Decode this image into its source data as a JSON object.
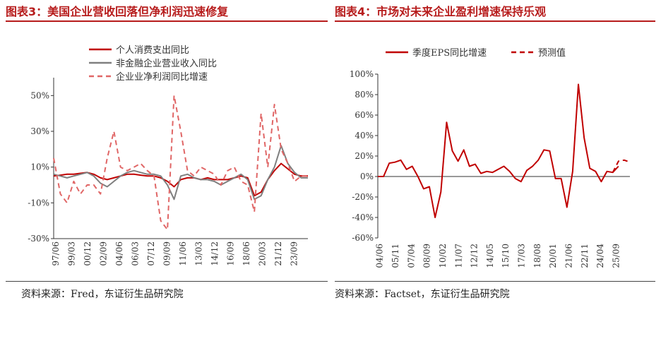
{
  "left": {
    "title": "图表3：美国企业营收回落但净利润迅速修复",
    "source": "资料来源：Fred，东证衍生品研究院"
  },
  "right": {
    "title": "图表4：市场对未来企业盈利增速保持乐观",
    "source": "资料来源：Factset，东证衍生品研究院"
  },
  "chart_data": [
    {
      "type": "line",
      "title": "图表3：美国企业营收回落但净利润迅速修复",
      "ylim": [
        -30,
        60
      ],
      "y_ticks": [
        -30,
        -10,
        10,
        30,
        50
      ],
      "y_tick_labels": [
        "-30%",
        "-10%",
        "10%",
        "30%",
        "50%"
      ],
      "x_tick_labels": [
        "97/06",
        "99/03",
        "00/12",
        "02/09",
        "04/06",
        "06/03",
        "07/12",
        "09/09",
        "11/06",
        "13/03",
        "14/12",
        "16/09",
        "18/06",
        "20/03",
        "21/12",
        "23/09"
      ],
      "legend_position": "top",
      "x": [
        "97/06",
        "98/03",
        "98/12",
        "99/03",
        "99/09",
        "00/06",
        "00/12",
        "01/06",
        "02/03",
        "02/09",
        "03/06",
        "04/06",
        "05/03",
        "06/03",
        "06/12",
        "07/12",
        "08/06",
        "08/12",
        "09/09",
        "10/06",
        "11/06",
        "12/03",
        "13/03",
        "14/06",
        "14/12",
        "15/09",
        "16/09",
        "17/06",
        "18/06",
        "19/06",
        "20/03",
        "20/06",
        "20/12",
        "21/06",
        "21/12",
        "22/06",
        "23/03",
        "23/09",
        "24/03"
      ],
      "series": [
        {
          "name": "个人消费支出同比",
          "color": "#c00000",
          "dash": "solid",
          "values": [
            5,
            5.5,
            6,
            6,
            6.5,
            7,
            6,
            4,
            3,
            4,
            5,
            6,
            6,
            5.5,
            5,
            5,
            4,
            2,
            -1,
            3,
            4,
            4,
            3,
            4,
            3,
            3,
            3,
            4,
            5,
            4,
            -6,
            -4,
            3,
            8,
            12,
            9,
            6,
            5,
            5
          ]
        },
        {
          "name": "非金融企业营业收入同比",
          "color": "#7f7f7f",
          "dash": "solid",
          "values": [
            6,
            5,
            4,
            5,
            6,
            7,
            5,
            1,
            -1,
            2,
            5,
            7,
            8,
            7,
            6,
            6,
            5,
            0,
            -8,
            5,
            6,
            4,
            3,
            3,
            2,
            0,
            2,
            4,
            6,
            3,
            -8,
            -6,
            3,
            10,
            22,
            12,
            7,
            4,
            4
          ]
        },
        {
          "name": "企业业净利润同比增速",
          "color": "#e06666",
          "dash": "dashed",
          "values": [
            15,
            -5,
            -10,
            2,
            -5,
            0,
            0,
            -5,
            15,
            30,
            10,
            8,
            10,
            12,
            8,
            5,
            -20,
            -25,
            50,
            30,
            8,
            5,
            10,
            8,
            6,
            0,
            8,
            10,
            2,
            0,
            -15,
            40,
            10,
            45,
            20,
            12,
            2,
            5,
            5
          ]
        }
      ]
    },
    {
      "type": "line",
      "title": "图表4：市场对未来企业盈利增速保持乐观",
      "ylim": [
        -60,
        100
      ],
      "y_ticks": [
        -60,
        -40,
        -20,
        0,
        20,
        40,
        60,
        80,
        100
      ],
      "y_tick_labels": [
        "-60%",
        "-40%",
        "-20%",
        "0%",
        "20%",
        "40%",
        "60%",
        "80%",
        "100%"
      ],
      "x_tick_labels": [
        "04/06",
        "05/11",
        "07/04",
        "08/09",
        "10/02",
        "11/07",
        "12/12",
        "14/05",
        "15/10",
        "17/03",
        "18/08",
        "20/01",
        "21/06",
        "22/11",
        "24/04",
        "25/09"
      ],
      "legend_position": "top",
      "x": [
        "04/06",
        "05/01",
        "05/06",
        "05/11",
        "06/06",
        "07/01",
        "07/06",
        "07/12",
        "08/06",
        "08/09",
        "09/03",
        "09/09",
        "10/02",
        "10/06",
        "10/12",
        "11/07",
        "12/01",
        "12/06",
        "12/12",
        "13/06",
        "14/01",
        "14/05",
        "14/12",
        "15/06",
        "15/10",
        "16/06",
        "17/03",
        "17/09",
        "18/03",
        "18/08",
        "19/03",
        "19/09",
        "20/01",
        "20/07",
        "20/12",
        "21/06",
        "21/12",
        "22/06",
        "22/11",
        "23/06",
        "24/01",
        "24/04",
        "24/09",
        "25/03",
        "25/09"
      ],
      "series": [
        {
          "name": "季度EPS同比增速",
          "color": "#c00000",
          "dash": "solid",
          "values": [
            0,
            0,
            13,
            14,
            16,
            7,
            10,
            0,
            -12,
            -10,
            -40,
            -15,
            53,
            25,
            15,
            26,
            10,
            12,
            3,
            5,
            4,
            7,
            10,
            5,
            -2,
            -5,
            6,
            10,
            16,
            26,
            25,
            -2,
            -2,
            -30,
            5,
            90,
            38,
            8,
            5,
            -5,
            5,
            4,
            10,
            null,
            null
          ]
        },
        {
          "name": "预测值",
          "color": "#c00000",
          "dash": "dashed",
          "values": [
            null,
            null,
            null,
            null,
            null,
            null,
            null,
            null,
            null,
            null,
            null,
            null,
            null,
            null,
            null,
            null,
            null,
            null,
            null,
            null,
            null,
            null,
            null,
            null,
            null,
            null,
            null,
            null,
            null,
            null,
            null,
            null,
            null,
            null,
            null,
            null,
            null,
            null,
            null,
            null,
            null,
            4,
            15,
            16,
            14
          ]
        }
      ]
    }
  ]
}
